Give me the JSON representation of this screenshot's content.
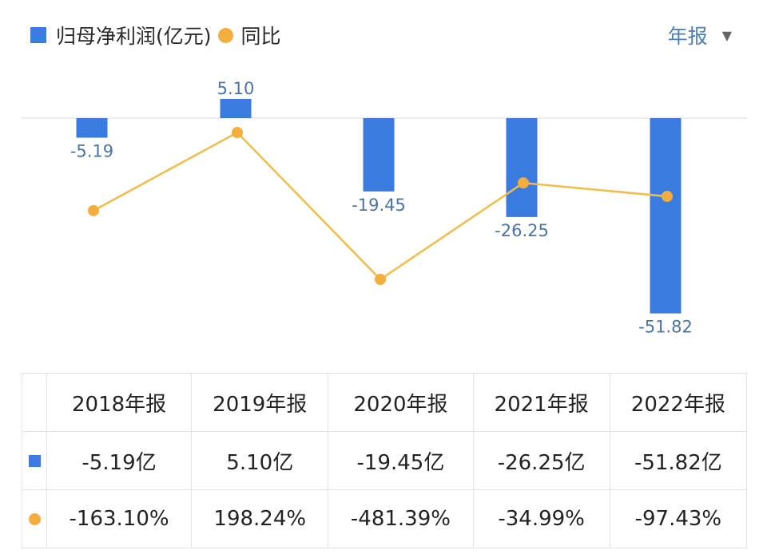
{
  "legend": {
    "bar_label": "归母净利润(亿元)",
    "line_label": "同比"
  },
  "period_selector": {
    "label": "年报",
    "arrow": "▼"
  },
  "colors": {
    "bar": "#3a7be0",
    "line": "#f4ae3d",
    "bar_label": "#4a74a8",
    "positive": "#d9545a",
    "negative": "#3aa57a"
  },
  "chart_data": {
    "type": "bar+line",
    "categories": [
      "2018年报",
      "2019年报",
      "2020年报",
      "2021年报",
      "2022年报"
    ],
    "series": [
      {
        "name": "归母净利润(亿元)",
        "type": "bar",
        "values": [
          -5.19,
          5.1,
          -19.45,
          -26.25,
          -51.82
        ],
        "labels": [
          "-5.19",
          "5.10",
          "-19.45",
          "-26.25",
          "-51.82"
        ]
      },
      {
        "name": "同比",
        "type": "line",
        "values": [
          -163.1,
          198.24,
          -481.39,
          -34.99,
          -97.43
        ]
      }
    ],
    "legend_position": "top-left",
    "grid": false
  },
  "table": {
    "headers": [
      "2018年报",
      "2019年报",
      "2020年报",
      "2021年报",
      "2022年报"
    ],
    "profit_row": [
      "-5.19亿",
      "5.10亿",
      "-19.45亿",
      "-26.25亿",
      "-51.82亿"
    ],
    "yoy_row": [
      "-163.10%",
      "198.24%",
      "-481.39%",
      "-34.99%",
      "-97.43%"
    ]
  }
}
